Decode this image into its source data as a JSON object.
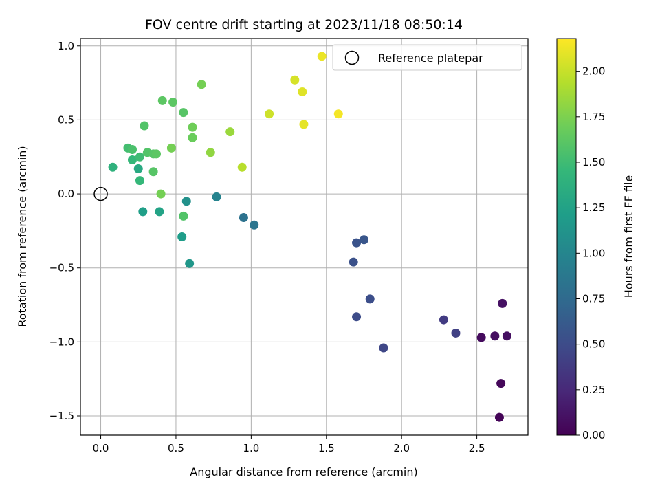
{
  "chart_data": {
    "type": "scatter",
    "title": "FOV centre drift starting at 2023/11/18 08:50:14",
    "xlabel": "Angular distance from reference (arcmin)",
    "ylabel": "Rotation from reference (arcmin)",
    "xlim": [
      -0.135,
      2.84
    ],
    "ylim": [
      -1.63,
      1.05
    ],
    "xticks": [
      0.0,
      0.5,
      1.0,
      1.5,
      2.0,
      2.5
    ],
    "xtick_labels": [
      "0.0",
      "0.5",
      "1.0",
      "1.5",
      "2.0",
      "2.5"
    ],
    "yticks": [
      1.0,
      0.5,
      0.0,
      -0.5,
      -1.0,
      -1.5
    ],
    "ytick_labels": [
      "1.0",
      "0.5",
      "0.0",
      "−0.5",
      "−1.0",
      "−1.5"
    ],
    "grid": true,
    "legend": {
      "placement": "top-right",
      "label": "Reference platepar"
    },
    "reference_point": {
      "x": 0.0,
      "y": 0.0
    },
    "colorbar": {
      "label": "Hours from first FF file",
      "colormap": "viridis",
      "range": [
        0.0,
        2.18
      ],
      "ticks": [
        0.0,
        0.25,
        0.5,
        0.75,
        1.0,
        1.25,
        1.5,
        1.75,
        2.0
      ],
      "tick_labels": [
        "0.00",
        "0.25",
        "0.50",
        "0.75",
        "1.00",
        "1.25",
        "1.50",
        "1.75",
        "2.00"
      ]
    },
    "points": [
      {
        "x": 2.65,
        "y": -1.51,
        "c": 0.02
      },
      {
        "x": 2.66,
        "y": -1.28,
        "c": 0.04
      },
      {
        "x": 2.53,
        "y": -0.97,
        "c": 0.06
      },
      {
        "x": 2.62,
        "y": -0.96,
        "c": 0.08
      },
      {
        "x": 2.7,
        "y": -0.96,
        "c": 0.09
      },
      {
        "x": 2.67,
        "y": -0.74,
        "c": 0.1
      },
      {
        "x": 2.28,
        "y": -0.85,
        "c": 0.38
      },
      {
        "x": 2.36,
        "y": -0.94,
        "c": 0.42
      },
      {
        "x": 1.88,
        "y": -1.04,
        "c": 0.46
      },
      {
        "x": 1.7,
        "y": -0.83,
        "c": 0.5
      },
      {
        "x": 1.79,
        "y": -0.71,
        "c": 0.52
      },
      {
        "x": 1.68,
        "y": -0.46,
        "c": 0.54
      },
      {
        "x": 1.7,
        "y": -0.33,
        "c": 0.56
      },
      {
        "x": 1.75,
        "y": -0.31,
        "c": 0.58
      },
      {
        "x": 0.95,
        "y": -0.16,
        "c": 0.82
      },
      {
        "x": 1.02,
        "y": -0.21,
        "c": 0.85
      },
      {
        "x": 0.77,
        "y": -0.02,
        "c": 0.98
      },
      {
        "x": 0.57,
        "y": -0.05,
        "c": 1.1
      },
      {
        "x": 0.59,
        "y": -0.47,
        "c": 1.15
      },
      {
        "x": 0.54,
        "y": -0.29,
        "c": 1.2
      },
      {
        "x": 0.28,
        "y": -0.12,
        "c": 1.22
      },
      {
        "x": 0.39,
        "y": -0.12,
        "c": 1.26
      },
      {
        "x": 0.25,
        "y": 0.17,
        "c": 1.32
      },
      {
        "x": 0.26,
        "y": 0.09,
        "c": 1.45
      },
      {
        "x": 0.55,
        "y": -0.15,
        "c": 1.58
      },
      {
        "x": 0.08,
        "y": 0.18,
        "c": 1.4
      },
      {
        "x": 0.21,
        "y": 0.23,
        "c": 1.45
      },
      {
        "x": 0.26,
        "y": 0.25,
        "c": 1.5
      },
      {
        "x": 0.18,
        "y": 0.31,
        "c": 1.52
      },
      {
        "x": 0.21,
        "y": 0.3,
        "c": 1.55
      },
      {
        "x": 0.31,
        "y": 0.28,
        "c": 1.58
      },
      {
        "x": 0.35,
        "y": 0.27,
        "c": 1.6
      },
      {
        "x": 0.37,
        "y": 0.27,
        "c": 1.62
      },
      {
        "x": 0.35,
        "y": 0.15,
        "c": 1.6
      },
      {
        "x": 0.29,
        "y": 0.46,
        "c": 1.58
      },
      {
        "x": 0.41,
        "y": 0.63,
        "c": 1.62
      },
      {
        "x": 0.48,
        "y": 0.62,
        "c": 1.62
      },
      {
        "x": 0.55,
        "y": 0.55,
        "c": 1.6
      },
      {
        "x": 0.61,
        "y": 0.38,
        "c": 1.68
      },
      {
        "x": 0.61,
        "y": 0.45,
        "c": 1.7
      },
      {
        "x": 0.47,
        "y": 0.31,
        "c": 1.72
      },
      {
        "x": 0.4,
        "y": 0.0,
        "c": 1.72
      },
      {
        "x": 0.67,
        "y": 0.74,
        "c": 1.72
      },
      {
        "x": 0.73,
        "y": 0.28,
        "c": 1.82
      },
      {
        "x": 0.86,
        "y": 0.42,
        "c": 1.85
      },
      {
        "x": 0.94,
        "y": 0.18,
        "c": 1.95
      },
      {
        "x": 1.12,
        "y": 0.54,
        "c": 2.02
      },
      {
        "x": 1.29,
        "y": 0.77,
        "c": 2.05
      },
      {
        "x": 1.34,
        "y": 0.69,
        "c": 2.08
      },
      {
        "x": 1.35,
        "y": 0.47,
        "c": 2.1
      },
      {
        "x": 1.47,
        "y": 0.93,
        "c": 2.12
      },
      {
        "x": 1.58,
        "y": 0.54,
        "c": 2.15
      }
    ]
  }
}
